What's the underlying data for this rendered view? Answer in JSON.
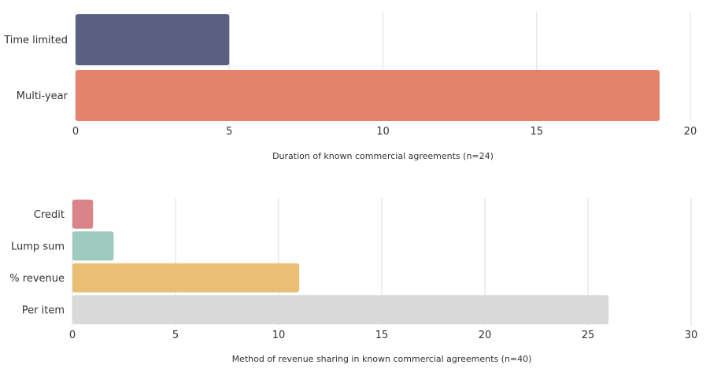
{
  "chart_data": [
    {
      "type": "bar",
      "orientation": "horizontal",
      "title": "",
      "caption": "Duration of known commercial agreements (n=24)",
      "categories": [
        "Time limited",
        "Multi-year"
      ],
      "values": [
        5,
        19
      ],
      "colors": [
        "#5b5f82",
        "#e5826c"
      ],
      "xlim": [
        0,
        20
      ],
      "xticks": [
        0,
        5,
        10,
        15,
        20
      ],
      "grid": true
    },
    {
      "type": "bar",
      "orientation": "horizontal",
      "title": "",
      "caption": "Method of revenue sharing in known commercial agreements (n=40)",
      "categories": [
        "Credit",
        "Lump sum",
        "% revenue",
        "Per item"
      ],
      "values": [
        1,
        2,
        11,
        26
      ],
      "colors": [
        "#d98488",
        "#9fcbbe",
        "#e9bf75",
        "#d9d9d9"
      ],
      "xlim": [
        0,
        30
      ],
      "xticks": [
        0,
        5,
        10,
        15,
        20,
        25,
        30
      ],
      "grid": true
    }
  ]
}
